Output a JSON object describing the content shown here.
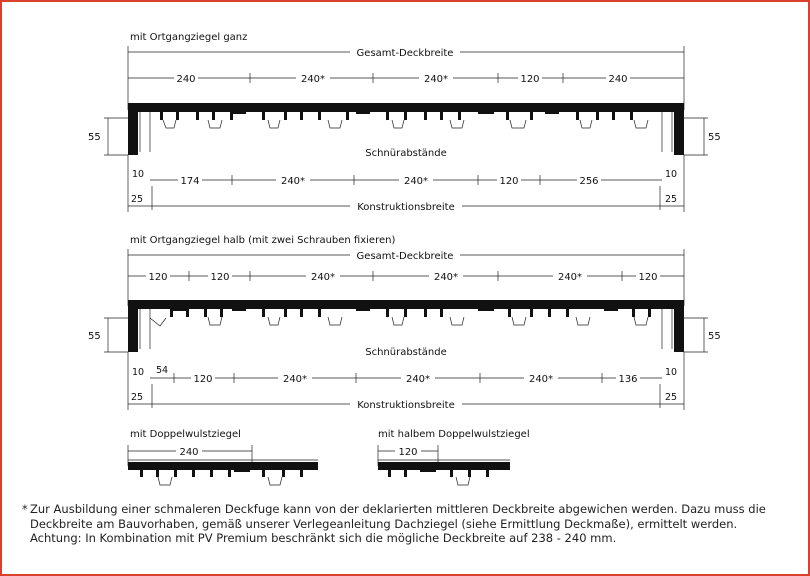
{
  "diagram1": {
    "title": "mit Ortgangziegel ganz",
    "total_label": "Gesamt-Deckbreite",
    "top_dims": [
      "240",
      "240*",
      "240*",
      "120",
      "240"
    ],
    "side_left": "55",
    "side_right": "55",
    "spacing_label": "Schnürabstände",
    "bottom_dims": [
      "10",
      "174",
      "240*",
      "240*",
      "120",
      "256",
      "10"
    ],
    "edge_left": "25",
    "edge_right": "25",
    "construction_label": "Konstruktionsbreite"
  },
  "diagram2": {
    "title": "mit Ortgangziegel halb (mit zwei Schrauben fixieren)",
    "total_label": "Gesamt-Deckbreite",
    "top_dims": [
      "120",
      "120",
      "240*",
      "240*",
      "240*",
      "120"
    ],
    "side_left": "55",
    "side_right": "55",
    "spacing_label": "Schnürabstände",
    "bottom_dims": [
      "10",
      "54",
      "120",
      "240*",
      "240*",
      "240*",
      "136",
      "10"
    ],
    "edge_left": "25",
    "edge_right": "25",
    "construction_label": "Konstruktionsbreite"
  },
  "diagram3": {
    "title": "mit Doppelwulstziegel",
    "dim": "240"
  },
  "diagram4": {
    "title": "mit halbem Doppelwulstziegel",
    "dim": "120"
  },
  "footnote": {
    "star": "*",
    "text": "Zur Ausbildung einer schmaleren Deckfuge kann von der deklarierten mittleren Deckbreite abgewichen werden. Dazu muss die Deckbreite am Bauvorhaben, gemäß unserer Verlegeanleitung Dachziegel (siehe Ermittlung Deckmaße), ermittelt werden. Achtung: In Kombination mit PV Premium beschränkt sich die mögliche Deckbreite auf 238 - 240 mm."
  },
  "colors": {
    "border": "#d9412c",
    "ink": "#111111"
  }
}
